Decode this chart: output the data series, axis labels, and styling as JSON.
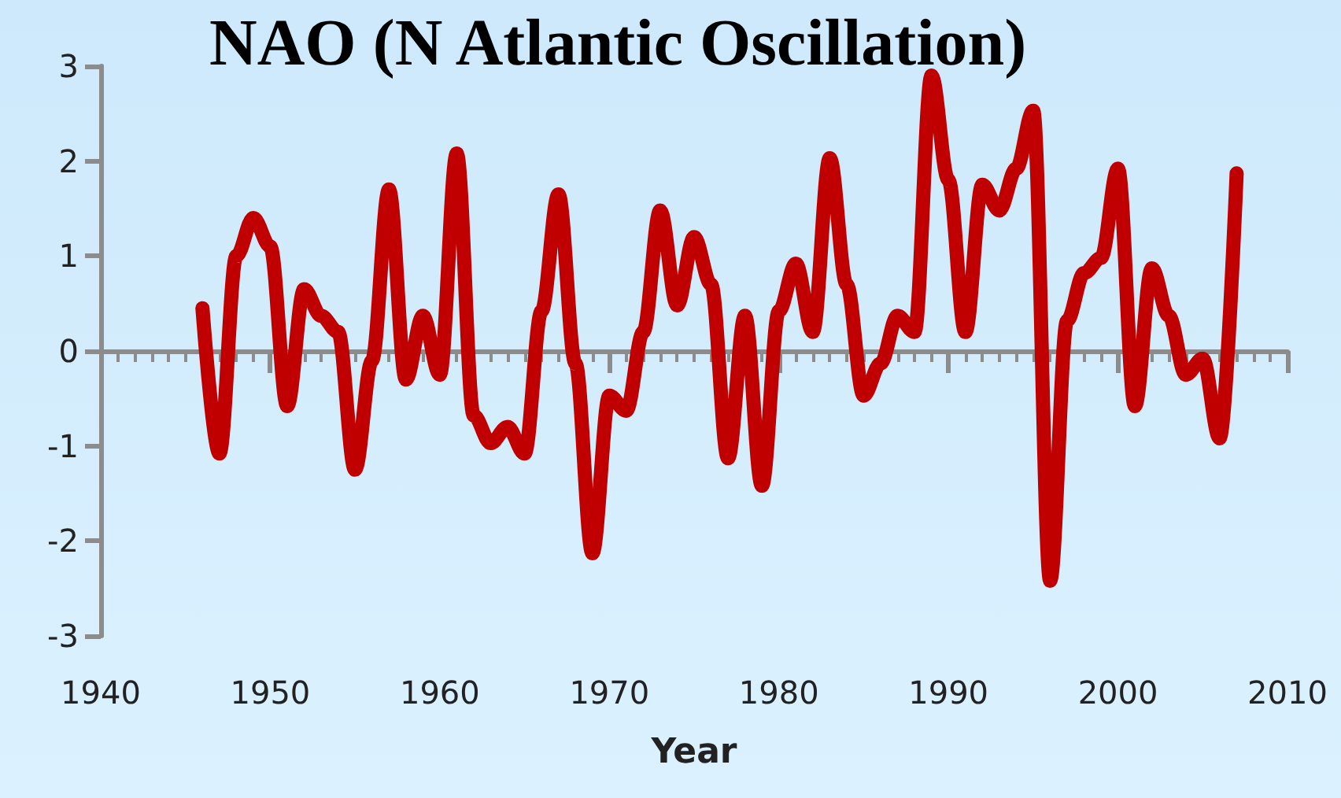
{
  "chart_data": {
    "type": "line",
    "title": "NAO (N Atlantic Oscillation)",
    "xlabel": "Year",
    "x": [
      1946,
      1947,
      1948,
      1949,
      1950,
      1951,
      1952,
      1953,
      1954,
      1955,
      1956,
      1957,
      1958,
      1959,
      1960,
      1961,
      1962,
      1963,
      1964,
      1965,
      1966,
      1967,
      1968,
      1969,
      1970,
      1971,
      1972,
      1973,
      1974,
      1975,
      1976,
      1977,
      1978,
      1979,
      1980,
      1981,
      1982,
      1983,
      1984,
      1985,
      1986,
      1987,
      1988,
      1989,
      1990,
      1991,
      1992,
      1993,
      1994,
      1995,
      1996,
      1997,
      1998,
      1999,
      2000,
      2001,
      2002,
      2003,
      2004,
      2005,
      2006,
      2007
    ],
    "series": [
      {
        "color": "#c00000",
        "values": [
          0.45,
          -1.08,
          1.0,
          1.4,
          1.1,
          -0.58,
          0.65,
          0.37,
          0.2,
          -1.25,
          -0.1,
          1.7,
          -0.3,
          0.37,
          -0.25,
          2.08,
          -0.68,
          -0.97,
          -0.8,
          -1.08,
          0.42,
          1.65,
          -0.13,
          -2.13,
          -0.47,
          -0.63,
          0.2,
          1.48,
          0.48,
          1.2,
          0.7,
          -1.13,
          0.37,
          -1.42,
          0.42,
          0.92,
          0.2,
          2.03,
          0.7,
          -0.47,
          -0.13,
          0.37,
          0.2,
          2.9,
          1.8,
          0.2,
          1.75,
          1.48,
          1.92,
          2.53,
          -2.42,
          0.32,
          0.82,
          0.98,
          1.92,
          -0.58,
          0.87,
          0.37,
          -0.25,
          -0.08,
          -0.92,
          1.87
        ]
      }
    ],
    "xlim": [
      1940,
      2010
    ],
    "xticks": [
      1940,
      1950,
      1960,
      1970,
      1980,
      1990,
      2000,
      2010
    ],
    "ylim": [
      -3,
      3
    ],
    "yticks": [
      -3,
      -2,
      -1,
      0,
      1,
      2,
      3
    ],
    "line_style": "solid"
  }
}
